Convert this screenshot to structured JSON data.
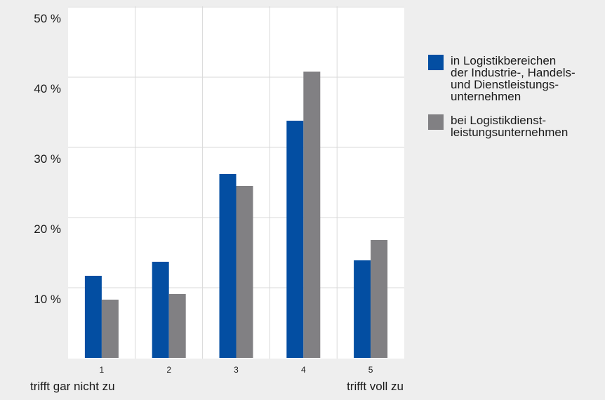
{
  "colors": {
    "series1": "#034ea2",
    "series2": "#818083",
    "plot_bg": "#ffffff",
    "page_bg": "#eeeeee",
    "grid": "#d9d9d9"
  },
  "legend": {
    "items": [
      {
        "label": "in Logistikbereichen\nder Industrie-, Handels-\nund Dienstleistungs-\nunternehmen",
        "color": "#034ea2"
      },
      {
        "label": "bei Logistikdienst-\nleistungsunternehmen",
        "color": "#818083"
      }
    ]
  },
  "chart_data": {
    "type": "bar",
    "title": "",
    "xlabel": "",
    "ylabel": "",
    "categories": [
      "1",
      "2",
      "3",
      "4",
      "5"
    ],
    "x_endpoint_labels": {
      "left": "trifft gar nicht zu",
      "right": "trifft voll zu"
    },
    "ytick_labels": [
      "10 %",
      "20 %",
      "30 %",
      "40 %",
      "50 %"
    ],
    "ytick_values": [
      10,
      20,
      30,
      40,
      50
    ],
    "ylim": [
      0,
      50
    ],
    "grid": true,
    "legend_position": "right",
    "series": [
      {
        "name": "in Logistikbereichen der Industrie-, Handels- und Dienstleistungsunternehmen",
        "values": [
          11.7,
          13.7,
          26.2,
          33.8,
          13.9
        ]
      },
      {
        "name": "bei Logistikdienstleistungsunternehmen",
        "values": [
          8.3,
          9.1,
          24.5,
          40.8,
          16.8
        ]
      }
    ]
  }
}
